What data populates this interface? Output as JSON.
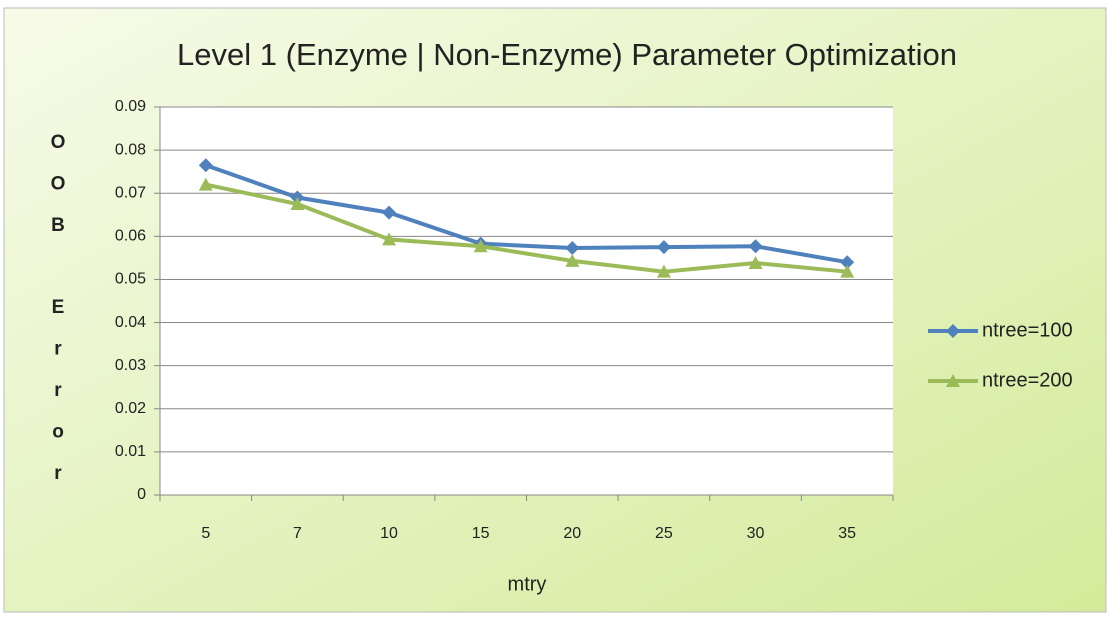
{
  "chart_data": {
    "type": "line",
    "title": "Level 1 (Enzyme | Non-Enzyme) Parameter Optimization",
    "x_label": "mtry",
    "y_label": "OOB Error",
    "categories": [
      "5",
      "7",
      "10",
      "15",
      "20",
      "25",
      "30",
      "35"
    ],
    "series": [
      {
        "name": "ntree=100",
        "color": "#4f81bd",
        "marker": "diamond",
        "values": [
          0.0765,
          0.069,
          0.0655,
          0.0583,
          0.0573,
          0.0575,
          0.0577,
          0.054
        ]
      },
      {
        "name": "ntree=200",
        "color": "#9bbb59",
        "marker": "triangle",
        "values": [
          0.072,
          0.0675,
          0.0593,
          0.0577,
          0.0543,
          0.0518,
          0.0538,
          0.0518
        ]
      }
    ],
    "ylim": [
      0,
      0.09
    ],
    "yticks": [
      0,
      0.01,
      0.02,
      0.03,
      0.04,
      0.05,
      0.06,
      0.07,
      0.08,
      0.09
    ],
    "grid": true,
    "legend": "right"
  }
}
